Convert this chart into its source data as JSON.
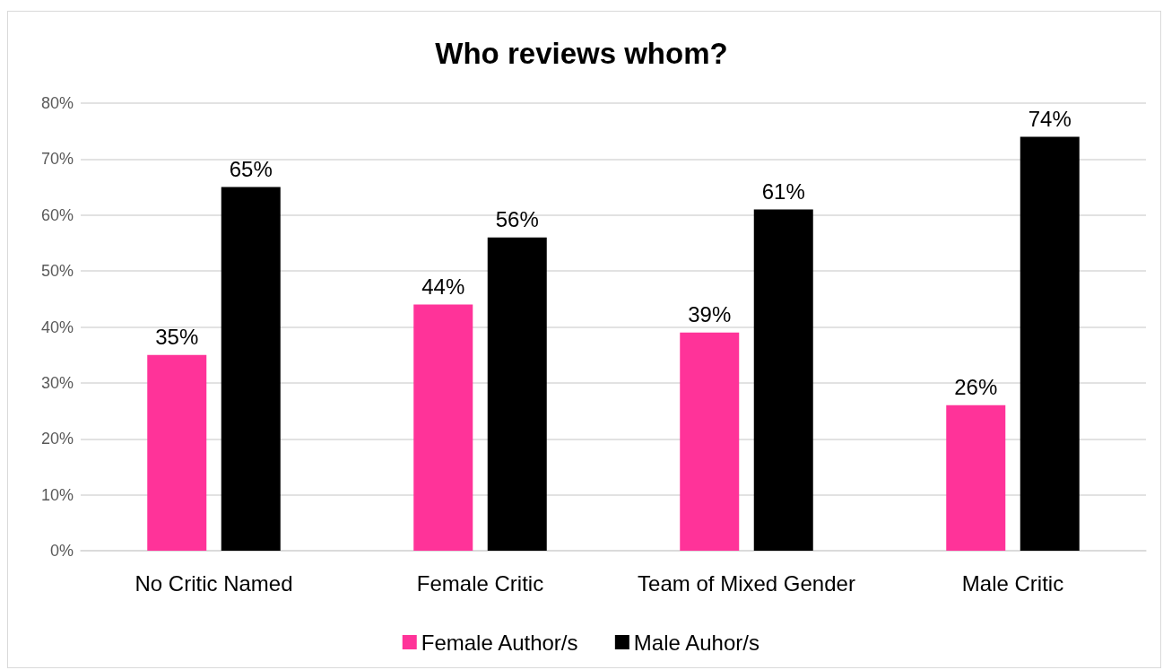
{
  "chart_data": {
    "type": "bar",
    "title": "Who reviews whom?",
    "categories": [
      "No Critic Named",
      "Female Critic",
      "Team of Mixed Gender",
      "Male Critic"
    ],
    "series": [
      {
        "name": "Female Author/s",
        "color": "#ff3399",
        "values": [
          35,
          44,
          39,
          26
        ],
        "value_labels": [
          "35%",
          "44%",
          "39%",
          "26%"
        ]
      },
      {
        "name": "Male Auhor/s",
        "color": "#000000",
        "values": [
          65,
          56,
          61,
          74
        ],
        "value_labels": [
          "65%",
          "56%",
          "61%",
          "74%"
        ]
      }
    ],
    "ylim": [
      0,
      80
    ],
    "yticks": [
      {
        "value": 0,
        "label": "0%"
      },
      {
        "value": 10,
        "label": "10%"
      },
      {
        "value": 20,
        "label": "20%"
      },
      {
        "value": 30,
        "label": "30%"
      },
      {
        "value": 40,
        "label": "40%"
      },
      {
        "value": 50,
        "label": "50%"
      },
      {
        "value": 60,
        "label": "60%"
      },
      {
        "value": 70,
        "label": "70%"
      },
      {
        "value": 80,
        "label": "80%"
      }
    ],
    "grid": "y",
    "legend": "bottom"
  }
}
